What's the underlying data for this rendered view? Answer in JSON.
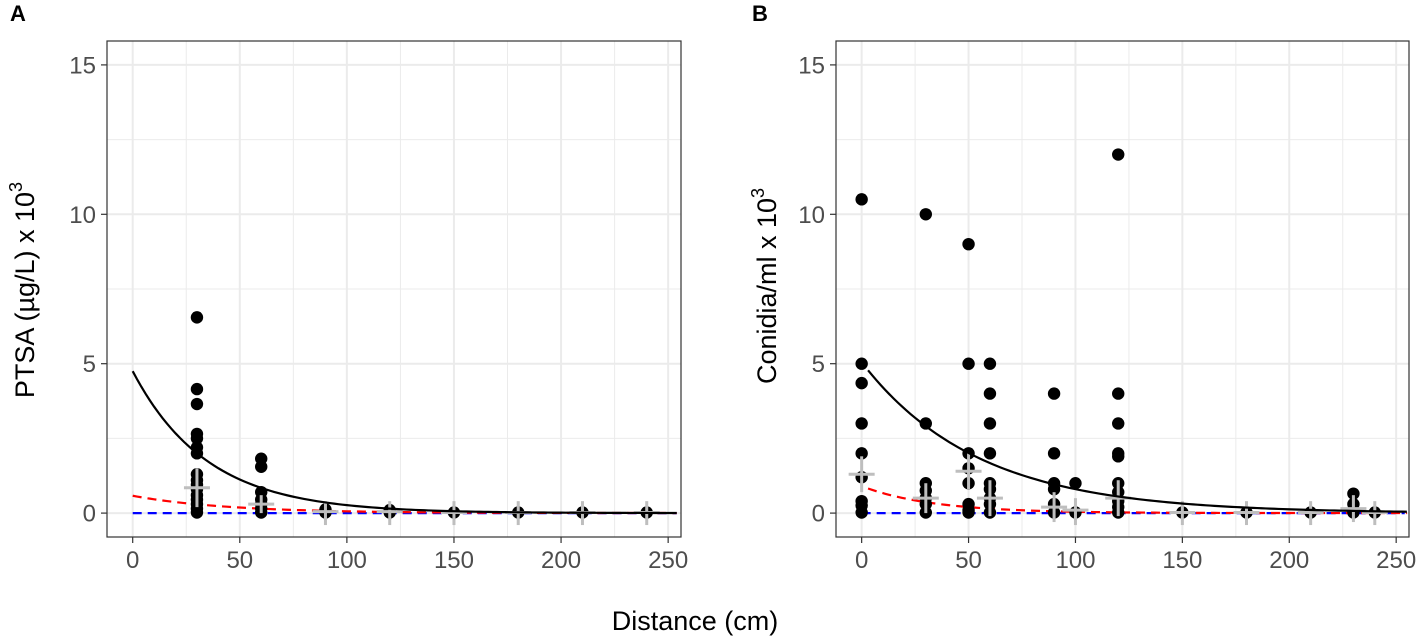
{
  "figure": {
    "xlabel": "Distance (cm)"
  },
  "colors": {
    "points": "#000000",
    "fit_line": "#000000",
    "red_dashed": "#ff0000",
    "blue_dashed": "#0000ff",
    "summary": "#bebebe",
    "grid": "#ebebeb",
    "border": "#333333"
  },
  "chart_data": [
    {
      "type": "scatter",
      "panel_label": "A",
      "ylabel": "PTSA (µg/L) x 10",
      "ylabel_exponent": "3",
      "xlim": [
        -12,
        256
      ],
      "ylim": [
        -0.8,
        15.8
      ],
      "xticks": [
        0,
        50,
        100,
        150,
        200,
        250
      ],
      "xtick_labels": [
        "0",
        "50",
        "100",
        "150",
        "200",
        "250"
      ],
      "yticks": [
        0,
        5,
        10,
        15
      ],
      "ytick_labels": [
        "0",
        "5",
        "10",
        "15"
      ],
      "points": [
        [
          30,
          6.55
        ],
        [
          30,
          4.15
        ],
        [
          30,
          3.65
        ],
        [
          30,
          2.65
        ],
        [
          30,
          2.5
        ],
        [
          30,
          2.2
        ],
        [
          30,
          2.0
        ],
        [
          30,
          1.3
        ],
        [
          30,
          1.1
        ],
        [
          30,
          0.95
        ],
        [
          30,
          0.8
        ],
        [
          30,
          0.6
        ],
        [
          30,
          0.45
        ],
        [
          30,
          0.3
        ],
        [
          30,
          0.15
        ],
        [
          30,
          0.02
        ],
        [
          60,
          1.82
        ],
        [
          60,
          1.55
        ],
        [
          60,
          0.7
        ],
        [
          60,
          0.45
        ],
        [
          60,
          0.3
        ],
        [
          60,
          0.15
        ],
        [
          60,
          0.02
        ],
        [
          90,
          0.12
        ],
        [
          90,
          0.02
        ],
        [
          120,
          0.1
        ],
        [
          120,
          0.02
        ],
        [
          150,
          0.02
        ],
        [
          180,
          0.02
        ],
        [
          210,
          0.02
        ],
        [
          240,
          0.02
        ]
      ],
      "summary": [
        {
          "x": 30,
          "mean": 0.85,
          "lo": 0.2,
          "hi": 1.5
        },
        {
          "x": 60,
          "mean": 0.3,
          "lo": 0.0,
          "hi": 0.6
        },
        {
          "x": 90,
          "mean": 0.05,
          "lo": -0.4,
          "hi": 0.4
        },
        {
          "x": 120,
          "mean": 0.05,
          "lo": -0.4,
          "hi": 0.4
        },
        {
          "x": 150,
          "mean": 0.02,
          "lo": -0.4,
          "hi": 0.4
        },
        {
          "x": 180,
          "mean": 0.02,
          "lo": -0.4,
          "hi": 0.4
        },
        {
          "x": 210,
          "mean": 0.02,
          "lo": -0.4,
          "hi": 0.4
        },
        {
          "x": 240,
          "mean": 0.02,
          "lo": -0.4,
          "hi": 0.4
        }
      ],
      "fit_curve": {
        "a": 4.75,
        "k": 0.0288,
        "from": 0,
        "to": 255
      },
      "red_curve": {
        "a": 0.58,
        "k": 0.0227,
        "from": 0,
        "to": 255
      },
      "blue_curve": {
        "a": 0.0,
        "k": 0,
        "from": 0,
        "to": 255
      }
    },
    {
      "type": "scatter",
      "panel_label": "B",
      "ylabel": "Conidia/ml x 10",
      "ylabel_exponent": "3",
      "xlim": [
        -12,
        256
      ],
      "ylim": [
        -0.8,
        15.8
      ],
      "xticks": [
        0,
        50,
        100,
        150,
        200,
        250
      ],
      "xtick_labels": [
        "0",
        "50",
        "100",
        "150",
        "200",
        "250"
      ],
      "yticks": [
        0,
        5,
        10,
        15
      ],
      "ytick_labels": [
        "0",
        "5",
        "10",
        "15"
      ],
      "points": [
        [
          0,
          10.5
        ],
        [
          0,
          5.0
        ],
        [
          0,
          4.35
        ],
        [
          0,
          3.0
        ],
        [
          0,
          2.0
        ],
        [
          0,
          1.2
        ],
        [
          0,
          0.4
        ],
        [
          0,
          0.25
        ],
        [
          0,
          0.02
        ],
        [
          30,
          10.0
        ],
        [
          30,
          3.0
        ],
        [
          30,
          1.0
        ],
        [
          30,
          0.75
        ],
        [
          30,
          0.5
        ],
        [
          30,
          0.3
        ],
        [
          30,
          0.02
        ],
        [
          50,
          9.0
        ],
        [
          50,
          5.0
        ],
        [
          50,
          2.0
        ],
        [
          50,
          1.5
        ],
        [
          50,
          1.0
        ],
        [
          50,
          0.3
        ],
        [
          50,
          0.1
        ],
        [
          50,
          0.02
        ],
        [
          60,
          5.0
        ],
        [
          60,
          4.0
        ],
        [
          60,
          3.0
        ],
        [
          60,
          2.0
        ],
        [
          60,
          1.0
        ],
        [
          60,
          0.8
        ],
        [
          60,
          0.5
        ],
        [
          60,
          0.3
        ],
        [
          60,
          0.02
        ],
        [
          90,
          4.0
        ],
        [
          90,
          2.0
        ],
        [
          90,
          1.0
        ],
        [
          90,
          0.8
        ],
        [
          90,
          0.3
        ],
        [
          90,
          0.02
        ],
        [
          100,
          1.0
        ],
        [
          100,
          0.02
        ],
        [
          120,
          12.0
        ],
        [
          120,
          4.0
        ],
        [
          120,
          3.0
        ],
        [
          120,
          2.0
        ],
        [
          120,
          1.9
        ],
        [
          120,
          1.0
        ],
        [
          120,
          0.7
        ],
        [
          120,
          0.4
        ],
        [
          120,
          0.2
        ],
        [
          120,
          0.02
        ],
        [
          150,
          0.02
        ],
        [
          180,
          0.02
        ],
        [
          210,
          0.02
        ],
        [
          230,
          0.65
        ],
        [
          230,
          0.3
        ],
        [
          230,
          0.02
        ],
        [
          240,
          0.02
        ]
      ],
      "summary": [
        {
          "x": 0,
          "mean": 1.3,
          "lo": 0.7,
          "hi": 1.9
        },
        {
          "x": 30,
          "mean": 0.5,
          "lo": 0.0,
          "hi": 1.0
        },
        {
          "x": 50,
          "mean": 1.4,
          "lo": 0.8,
          "hi": 2.0
        },
        {
          "x": 60,
          "mean": 0.5,
          "lo": -0.1,
          "hi": 1.1
        },
        {
          "x": 90,
          "mean": 0.2,
          "lo": -0.3,
          "hi": 0.7
        },
        {
          "x": 100,
          "mean": 0.1,
          "lo": -0.4,
          "hi": 0.5
        },
        {
          "x": 120,
          "mean": 0.5,
          "lo": -0.1,
          "hi": 1.1
        },
        {
          "x": 150,
          "mean": 0.02,
          "lo": -0.4,
          "hi": 0.4
        },
        {
          "x": 180,
          "mean": 0.02,
          "lo": -0.4,
          "hi": 0.4
        },
        {
          "x": 210,
          "mean": 0.02,
          "lo": -0.4,
          "hi": 0.4
        },
        {
          "x": 230,
          "mean": 0.15,
          "lo": -0.3,
          "hi": 0.6
        },
        {
          "x": 240,
          "mean": 0.02,
          "lo": -0.4,
          "hi": 0.4
        }
      ],
      "fit_curve": {
        "a": 5.05,
        "k": 0.0184,
        "from": 3,
        "to": 255
      },
      "red_curve": {
        "a": 0.9,
        "k": 0.03,
        "from": 3,
        "to": 255
      },
      "blue_curve": {
        "a": 0.0,
        "k": 0,
        "from": 0,
        "to": 255
      }
    }
  ]
}
